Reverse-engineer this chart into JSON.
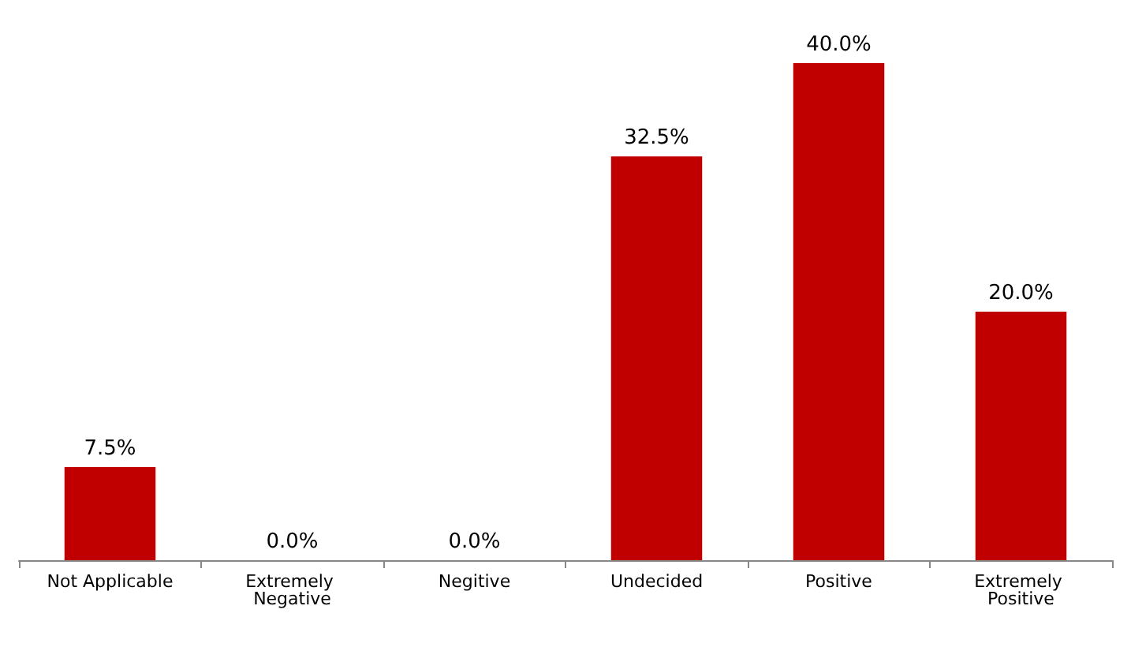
{
  "chart_data": {
    "type": "bar",
    "categories": [
      "Not Applicable",
      "Extremely Negative",
      "Negitive",
      "Undecided",
      "Positive",
      "Extremely Positive"
    ],
    "values": [
      7.5,
      0.0,
      0.0,
      32.5,
      40.0,
      20.0
    ],
    "value_labels": [
      "7.5%",
      "0.0%",
      "0.0%",
      "32.5%",
      "40.0%",
      "20.0%"
    ],
    "color": "#c00000"
  }
}
